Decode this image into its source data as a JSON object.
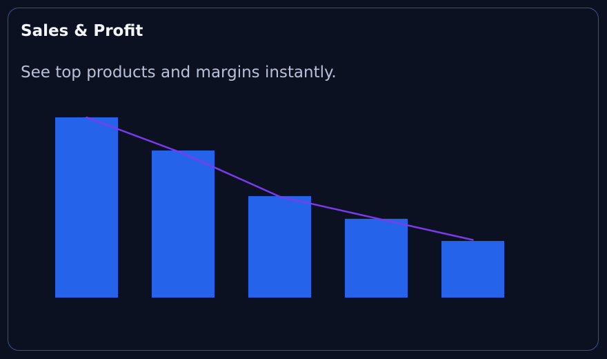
{
  "card": {
    "title": "Sales & Profit",
    "subtitle": "See top products and margins instantly."
  },
  "colors": {
    "background": "#0b1120",
    "card_border": "#3d5287",
    "bar": "#2563eb",
    "line": "#7c3aed",
    "title": "#f3f5fb",
    "subtitle": "#b7c1d9"
  },
  "chart_data": {
    "type": "bar",
    "categories": [
      "",
      "",
      "",
      "",
      ""
    ],
    "series": [
      {
        "type": "bar",
        "values": [
          100,
          81.6,
          56.3,
          43.7,
          31.4
        ]
      },
      {
        "type": "line",
        "values": [
          100,
          80,
          56,
          44,
          32
        ]
      }
    ],
    "ylim": [
      0,
      100
    ],
    "grid": false,
    "legend": "none"
  }
}
